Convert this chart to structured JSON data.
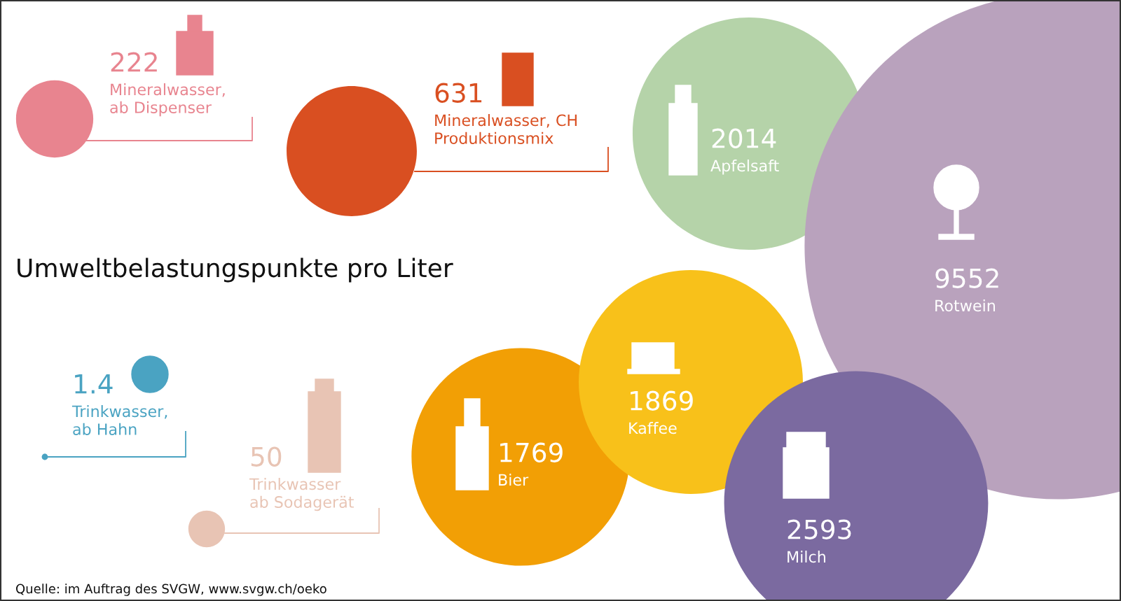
{
  "chart_data": {
    "type": "other",
    "title": "Umweltbelastungspunkte pro Liter",
    "categories": [
      "Mineralwasser,\nab Dispenser",
      "Mineralwasser, CH\nProduktionsmix",
      "Apfelsaft",
      "Rotwein",
      "Kaffee",
      "Bier",
      "Milch",
      "Trinkwasser,\nab Hahn",
      "Trinkwasser\nab Sodagerät"
    ],
    "values": [
      222,
      631,
      2014,
      9552,
      1869,
      1769,
      2593,
      1.4,
      50
    ],
    "colors": [
      "#e8848f",
      "#d94f21",
      "#b5d3a9",
      "#b9a2bd",
      "#f8c11a",
      "#f29f05",
      "#7b6aa0",
      "#4aa3c2",
      "#e8c4b4"
    ],
    "data_labels": true,
    "annotations": [
      "Quelle: im Auftrag des SVGW, www.svgw.ch/oeko"
    ]
  }
}
